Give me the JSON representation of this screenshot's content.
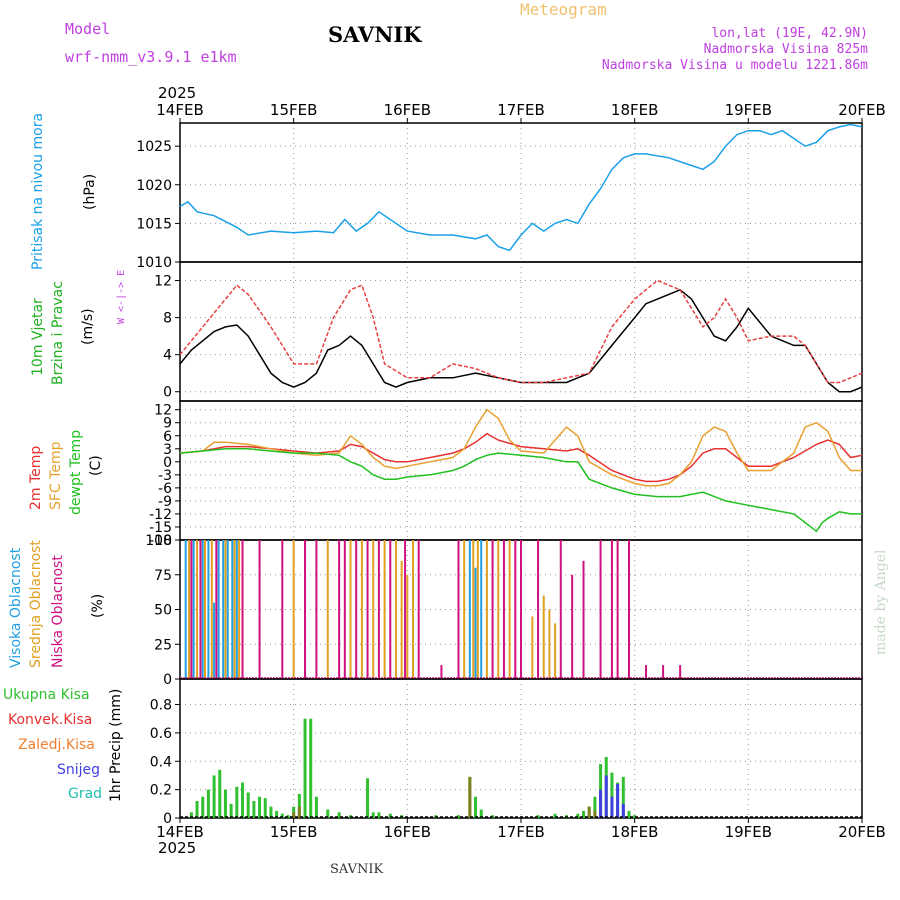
{
  "header": {
    "model_label": "Model",
    "model_name": "wrf-nmm_v3.9.1 e1km",
    "title": "SAVNIK",
    "subtitle": "Meteogram",
    "coords": "lon,lat (19E, 42.9N)",
    "elevation": "Nadmorska Visina 825m",
    "model_elevation": "Nadmorska Visina u modelu 1221.86m",
    "year_top": "2025",
    "year_bottom": "2025",
    "footer": "SAVNIK",
    "credit": "made by Angel"
  },
  "colors": {
    "pressure": "#1aa0e8",
    "temp2m": "#e83030",
    "sfc": "#e8a030",
    "dewpt": "#20c020",
    "wind": "#000000",
    "gust": "#e84040",
    "visoka": "#20a0e0",
    "srednja": "#e0a020",
    "niska": "#d01080",
    "ukupna": "#30c030",
    "konvek": "#e83030",
    "zaledj": "#f08030",
    "snijeg": "#4040e0",
    "grad": "#20c0b0"
  },
  "labels": {
    "pressure": [
      "Pritisak na nivou mora",
      "(hPa)"
    ],
    "wind": [
      "10m Vjetar",
      "Brzina i Pravac",
      "(m/s)"
    ],
    "temp": [
      "2m Temp",
      "SFC Temp",
      "dewpt Temp",
      "(C)"
    ],
    "cloud": [
      "Visoka Oblacnost",
      "Srednja Oblacnost",
      "Niska Oblacnost",
      "(%)"
    ],
    "precip_legend": [
      "Ukupna Kisa",
      "Konvek.Kisa",
      "Zaledj.Kisa",
      "Snijeg",
      "Grad"
    ],
    "precip_axis": "1hr Precip (mm)",
    "compass": "W <-|-> E"
  },
  "chart_data": [
    {
      "type": "line",
      "name": "pressure",
      "x_dates": [
        "14FEB",
        "15FEB",
        "16FEB",
        "17FEB",
        "18FEB",
        "19FEB",
        "20FEB"
      ],
      "xlim": [
        0,
        6
      ],
      "ylim": [
        1010,
        1028
      ],
      "yticks": [
        1010,
        1015,
        1020,
        1025
      ],
      "grid": true,
      "series": [
        {
          "x": [
            0,
            0.07,
            0.15,
            0.3,
            0.5,
            0.6,
            0.8,
            1.0,
            1.2,
            1.35,
            1.45,
            1.55,
            1.65,
            1.75,
            1.85,
            2.0,
            2.2,
            2.4,
            2.6,
            2.7,
            2.8,
            2.9,
            3.0,
            3.1,
            3.2,
            3.3,
            3.4,
            3.5,
            3.6,
            3.7,
            3.8,
            3.9,
            4.0,
            4.1,
            4.3,
            4.5,
            4.6,
            4.7,
            4.8,
            4.9,
            5.0,
            5.1,
            5.2,
            5.3,
            5.4,
            5.5,
            5.6,
            5.7,
            5.8,
            5.9,
            6.0
          ],
          "y": [
            1017.2,
            1017.8,
            1016.5,
            1016.0,
            1014.5,
            1013.5,
            1014.0,
            1013.8,
            1014.0,
            1013.8,
            1015.5,
            1014.0,
            1015.0,
            1016.5,
            1015.5,
            1014.0,
            1013.5,
            1013.5,
            1013.0,
            1013.5,
            1012.0,
            1011.5,
            1013.5,
            1015.0,
            1014.0,
            1015.0,
            1015.5,
            1015.0,
            1017.5,
            1019.5,
            1022.0,
            1023.5,
            1024.0,
            1024.0,
            1023.5,
            1022.5,
            1022.0,
            1023.0,
            1025.0,
            1026.5,
            1027.0,
            1027.0,
            1026.5,
            1027.0,
            1026.0,
            1025.0,
            1025.5,
            1027.0,
            1027.5,
            1027.8,
            1027.5
          ]
        }
      ]
    },
    {
      "type": "line",
      "name": "wind",
      "xlim": [
        0,
        6
      ],
      "ylim": [
        -1,
        14
      ],
      "yticks": [
        0,
        4,
        8,
        12
      ],
      "grid": true,
      "series": [
        {
          "name": "speed",
          "x": [
            0,
            0.1,
            0.2,
            0.3,
            0.4,
            0.5,
            0.6,
            0.7,
            0.8,
            0.9,
            1.0,
            1.1,
            1.2,
            1.3,
            1.4,
            1.5,
            1.6,
            1.7,
            1.8,
            1.9,
            2.0,
            2.2,
            2.4,
            2.6,
            2.8,
            3.0,
            3.2,
            3.4,
            3.5,
            3.6,
            3.8,
            4.0,
            4.1,
            4.2,
            4.3,
            4.4,
            4.5,
            4.6,
            4.7,
            4.8,
            4.9,
            5.0,
            5.2,
            5.4,
            5.5,
            5.6,
            5.7,
            5.8,
            5.9,
            6.0
          ],
          "y": [
            3,
            4.5,
            5.5,
            6.5,
            7,
            7.2,
            6,
            4,
            2,
            1,
            0.5,
            1,
            2,
            4.5,
            5,
            6,
            5,
            3,
            1,
            0.5,
            1,
            1.5,
            1.5,
            2.0,
            1.5,
            1,
            1,
            1,
            1.5,
            2,
            5,
            8,
            9.5,
            10,
            10.5,
            11,
            10,
            8,
            6,
            5.5,
            7,
            9,
            6,
            5,
            5,
            3,
            1,
            0,
            0,
            0.5
          ]
        },
        {
          "name": "gust",
          "x": [
            0,
            0.2,
            0.4,
            0.5,
            0.6,
            0.8,
            1.0,
            1.2,
            1.35,
            1.5,
            1.6,
            1.7,
            1.8,
            2.0,
            2.2,
            2.4,
            2.6,
            2.8,
            3.0,
            3.2,
            3.4,
            3.6,
            3.8,
            4.0,
            4.1,
            4.2,
            4.3,
            4.4,
            4.5,
            4.6,
            4.7,
            4.8,
            4.9,
            5.0,
            5.2,
            5.4,
            5.5,
            5.6,
            5.7,
            5.8,
            6.0
          ],
          "y": [
            4,
            7,
            10,
            11.5,
            10.5,
            7,
            3,
            3,
            8,
            11,
            11.5,
            8,
            3,
            1.5,
            1.5,
            3,
            2.5,
            1.5,
            1,
            1,
            1.5,
            2,
            7,
            10,
            11,
            12,
            11.5,
            11,
            9,
            7,
            8,
            10,
            8,
            5.5,
            6,
            6,
            5,
            3,
            1,
            1,
            2
          ]
        }
      ]
    },
    {
      "type": "line",
      "name": "temperature",
      "xlim": [
        0,
        6
      ],
      "ylim": [
        -18,
        14
      ],
      "yticks": [
        -18,
        -15,
        -12,
        -9,
        -6,
        -3,
        0,
        3,
        6,
        9,
        12
      ],
      "grid": true,
      "series": [
        {
          "name": "2m Temp",
          "x": [
            0,
            0.2,
            0.4,
            0.6,
            0.8,
            1.0,
            1.2,
            1.4,
            1.5,
            1.6,
            1.7,
            1.8,
            1.9,
            2.0,
            2.2,
            2.4,
            2.5,
            2.6,
            2.7,
            2.8,
            3.0,
            3.2,
            3.4,
            3.5,
            3.6,
            3.8,
            4.0,
            4.1,
            4.2,
            4.3,
            4.4,
            4.5,
            4.6,
            4.7,
            4.8,
            4.9,
            5.0,
            5.2,
            5.4,
            5.6,
            5.7,
            5.8,
            5.9,
            6.0
          ],
          "y": [
            2,
            2.5,
            3.5,
            3.5,
            3,
            2.5,
            2,
            2.5,
            4,
            3.5,
            2,
            0.5,
            0,
            0,
            1,
            2,
            3,
            4.5,
            6.5,
            5,
            3.5,
            3,
            2.5,
            3,
            1.5,
            -2,
            -4,
            -4.5,
            -4.5,
            -4,
            -3,
            -1,
            2,
            3,
            3,
            1,
            -1,
            -1,
            1,
            4,
            5,
            4,
            1,
            1.5
          ]
        },
        {
          "name": "SFC Temp",
          "x": [
            0,
            0.2,
            0.3,
            0.4,
            0.6,
            0.8,
            1.0,
            1.2,
            1.4,
            1.5,
            1.6,
            1.7,
            1.8,
            1.9,
            2.0,
            2.2,
            2.4,
            2.5,
            2.6,
            2.7,
            2.8,
            2.9,
            3.0,
            3.2,
            3.3,
            3.4,
            3.5,
            3.6,
            3.8,
            4.0,
            4.1,
            4.2,
            4.3,
            4.4,
            4.5,
            4.6,
            4.7,
            4.8,
            4.9,
            5.0,
            5.2,
            5.4,
            5.5,
            5.6,
            5.7,
            5.8,
            5.9,
            6.0
          ],
          "y": [
            2,
            2.5,
            4.5,
            4.5,
            4,
            3,
            2,
            1.5,
            2,
            6,
            4,
            1,
            -1,
            -1.5,
            -1,
            0,
            1,
            3,
            8,
            12,
            10,
            5,
            2.5,
            2,
            5,
            8,
            6,
            0,
            -3,
            -5,
            -5.5,
            -5.5,
            -5,
            -3,
            0,
            6,
            8,
            7,
            2,
            -2,
            -2,
            2,
            8,
            9,
            7,
            1,
            -2,
            -2
          ]
        },
        {
          "name": "dewpt Temp",
          "x": [
            0,
            0.2,
            0.4,
            0.6,
            0.8,
            1.0,
            1.2,
            1.4,
            1.5,
            1.6,
            1.7,
            1.8,
            1.9,
            2.0,
            2.2,
            2.4,
            2.5,
            2.6,
            2.7,
            2.8,
            3.0,
            3.2,
            3.4,
            3.5,
            3.6,
            3.8,
            4.0,
            4.2,
            4.4,
            4.6,
            4.8,
            5.0,
            5.2,
            5.4,
            5.5,
            5.6,
            5.65,
            5.7,
            5.8,
            5.9,
            6.0
          ],
          "y": [
            2,
            2.5,
            3,
            3,
            2.5,
            2,
            2,
            1.5,
            0,
            -1,
            -3,
            -4,
            -4,
            -3.5,
            -3,
            -2,
            -1,
            0.5,
            1.5,
            2,
            1.5,
            1,
            0,
            0,
            -4,
            -6,
            -7.5,
            -8,
            -8,
            -7,
            -9,
            -10,
            -11,
            -12,
            -14,
            -16,
            -14,
            -13,
            -11.5,
            -12,
            -12
          ]
        }
      ]
    },
    {
      "type": "bar",
      "name": "cloud cover",
      "xlim": [
        0,
        6
      ],
      "ylim": [
        0,
        100
      ],
      "yticks": [
        0,
        25,
        50,
        75,
        100
      ],
      "grid": true,
      "series": [
        {
          "name": "Visoka Oblacnost",
          "x": [
            0.05,
            0.12,
            0.2,
            0.25,
            0.3,
            0.34,
            0.38,
            0.42,
            0.46,
            0.5,
            2.55,
            2.6,
            2.65
          ],
          "y": [
            100,
            100,
            100,
            100,
            55,
            100,
            100,
            100,
            100,
            100,
            100,
            80,
            100
          ]
        },
        {
          "name": "Srednja Oblacnost",
          "x": [
            0.08,
            0.15,
            0.22,
            0.28,
            0.4,
            0.48,
            0.52,
            1.0,
            1.1,
            1.3,
            1.5,
            1.6,
            1.7,
            1.8,
            1.9,
            1.95,
            2.0,
            2.05,
            2.5,
            2.58,
            2.62,
            2.7,
            2.8,
            2.9,
            3.1,
            3.2,
            3.25,
            3.3
          ],
          "y": [
            100,
            100,
            100,
            100,
            100,
            100,
            100,
            100,
            100,
            100,
            100,
            100,
            100,
            100,
            100,
            85,
            75,
            100,
            100,
            100,
            100,
            100,
            100,
            100,
            45,
            60,
            50,
            40
          ]
        },
        {
          "name": "Niska Oblacnost",
          "x": [
            0.1,
            0.18,
            0.32,
            0.55,
            0.7,
            0.9,
            1.1,
            1.2,
            1.4,
            1.45,
            1.55,
            1.65,
            1.75,
            1.85,
            1.98,
            2.1,
            2.3,
            2.45,
            2.75,
            2.85,
            2.95,
            3.0,
            3.15,
            3.35,
            3.45,
            3.55,
            3.7,
            3.8,
            3.85,
            3.95,
            4.1,
            4.25,
            4.4
          ],
          "y": [
            100,
            100,
            100,
            100,
            100,
            100,
            100,
            100,
            100,
            100,
            100,
            100,
            100,
            100,
            100,
            100,
            10,
            100,
            100,
            100,
            100,
            100,
            100,
            100,
            75,
            85,
            100,
            100,
            100,
            100,
            10,
            10,
            10
          ]
        }
      ]
    },
    {
      "type": "bar",
      "name": "precipitation",
      "xlim": [
        0,
        6
      ],
      "ylim": [
        0,
        0.98
      ],
      "yticks": [
        0,
        0.2,
        0.4,
        0.6,
        0.8
      ],
      "grid": true,
      "series": [
        {
          "name": "Ukupna Kisa",
          "x": [
            0.1,
            0.15,
            0.2,
            0.25,
            0.3,
            0.35,
            0.4,
            0.45,
            0.5,
            0.55,
            0.6,
            0.65,
            0.7,
            0.75,
            0.8,
            0.85,
            0.9,
            0.95,
            1.0,
            1.05,
            1.1,
            1.15,
            1.2,
            1.3,
            1.4,
            1.5,
            1.65,
            1.7,
            1.75,
            1.85,
            1.95,
            2.25,
            2.45,
            2.55,
            2.6,
            2.65,
            2.75,
            3.15,
            3.3,
            3.4,
            3.5,
            3.55,
            3.6,
            3.65,
            3.7,
            3.75,
            3.8,
            3.85,
            3.9,
            3.95,
            4.0
          ],
          "y": [
            0.04,
            0.12,
            0.15,
            0.2,
            0.3,
            0.34,
            0.2,
            0.1,
            0.22,
            0.25,
            0.18,
            0.12,
            0.15,
            0.14,
            0.08,
            0.05,
            0.03,
            0.02,
            0.08,
            0.17,
            0.7,
            0.7,
            0.15,
            0.06,
            0.04,
            0.02,
            0.28,
            0.04,
            0.04,
            0.03,
            0.02,
            0.02,
            0.02,
            0.29,
            0.15,
            0.06,
            0.02,
            0.02,
            0.03,
            0.02,
            0.03,
            0.05,
            0.08,
            0.15,
            0.38,
            0.43,
            0.32,
            0.25,
            0.29,
            0.05,
            0.02
          ]
        },
        {
          "name": "Zaledj.Kisa",
          "x": [
            1.0,
            1.05,
            2.55,
            3.6,
            3.65
          ],
          "y": [
            0.04,
            0.08,
            0.29,
            0.08,
            0.05
          ]
        },
        {
          "name": "Snijeg",
          "x": [
            3.7,
            3.75,
            3.8,
            3.85,
            3.9
          ],
          "y": [
            0.2,
            0.3,
            0.15,
            0.24,
            0.1
          ]
        }
      ]
    }
  ]
}
